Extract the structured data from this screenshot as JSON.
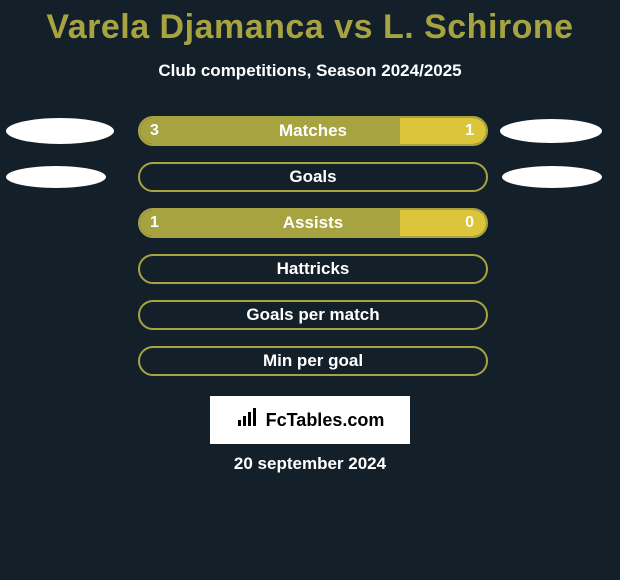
{
  "title_color": "#a8a341",
  "title_parts": {
    "p1": "Varela Djamanca",
    "vs": "vs",
    "p2": "L. Schirone"
  },
  "subtitle": "Club competitions, Season 2024/2025",
  "colors": {
    "player1": "#a8a341",
    "player2": "#dcc53a",
    "empty_border": "#a8a341",
    "empty_fill": "#13202a",
    "ellipse": "#ffffff"
  },
  "ellipse_sizes": {
    "row0": {
      "left_w": 108,
      "left_h": 26,
      "right_w": 102,
      "right_h": 24
    },
    "row1": {
      "left_w": 100,
      "left_h": 22,
      "right_w": 100,
      "right_h": 22
    }
  },
  "rows": [
    {
      "label": "Matches",
      "left": "3",
      "right": "1",
      "left_pct": 75,
      "right_pct": 25,
      "show_values": true,
      "show_ellipses": true,
      "ellipse_key": "row0"
    },
    {
      "label": "Goals",
      "left": "",
      "right": "",
      "left_pct": 0,
      "right_pct": 0,
      "show_values": false,
      "show_ellipses": true,
      "ellipse_key": "row1"
    },
    {
      "label": "Assists",
      "left": "1",
      "right": "0",
      "left_pct": 75,
      "right_pct": 25,
      "show_values": true,
      "show_ellipses": false
    },
    {
      "label": "Hattricks",
      "left": "",
      "right": "",
      "left_pct": 0,
      "right_pct": 0,
      "show_values": false,
      "show_ellipses": false
    },
    {
      "label": "Goals per match",
      "left": "",
      "right": "",
      "left_pct": 0,
      "right_pct": 0,
      "show_values": false,
      "show_ellipses": false
    },
    {
      "label": "Min per goal",
      "left": "",
      "right": "",
      "left_pct": 0,
      "right_pct": 0,
      "show_values": false,
      "show_ellipses": false
    }
  ],
  "logo_text": "FcTables.com",
  "date": "20 september 2024"
}
